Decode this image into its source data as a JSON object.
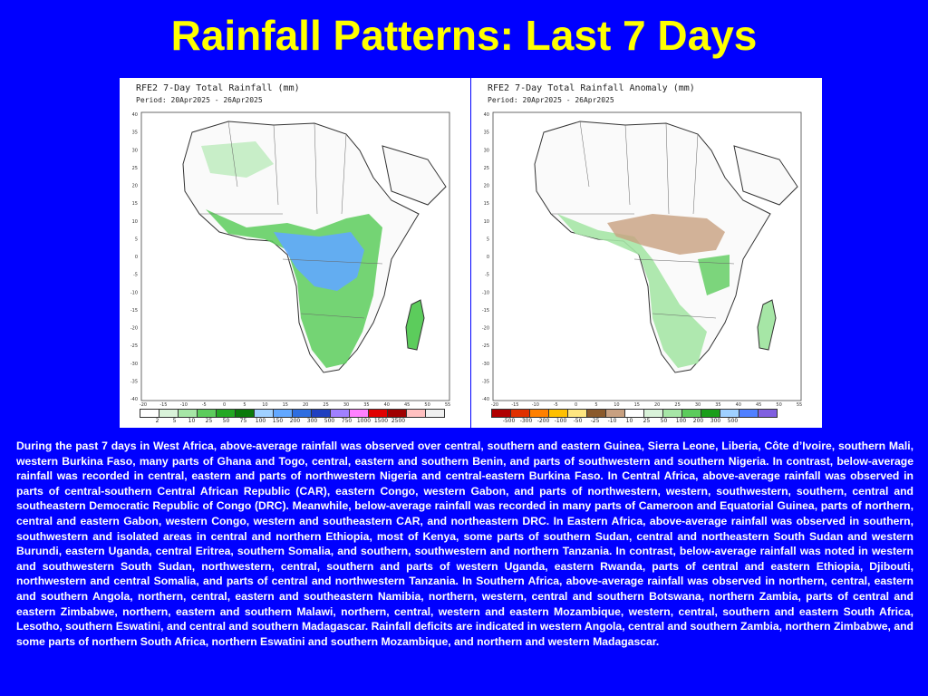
{
  "title": "Rainfall Patterns: Last 7 Days",
  "left_map": {
    "title": "RFE2 7-Day Total Rainfall (mm)",
    "period": "Period: 20Apr2025 - 26Apr2025",
    "legend_values": [
      "2",
      "5",
      "10",
      "25",
      "50",
      "75",
      "100",
      "150",
      "200",
      "300",
      "500",
      "750",
      "1000",
      "1500",
      "2500"
    ],
    "legend_colors": [
      "#ffffff",
      "#d9f2d9",
      "#a6e6a6",
      "#5ccc5c",
      "#22a822",
      "#0b7a0b",
      "#9fd0ff",
      "#62a8ff",
      "#2d6de0",
      "#2040c0",
      "#a080ff",
      "#ff80ff",
      "#e00000",
      "#a00000",
      "#ffc0c0",
      "#f0f0f0"
    ],
    "y_ticks": [
      "40",
      "35",
      "30",
      "25",
      "20",
      "15",
      "10",
      "5",
      "0",
      "-5",
      "-10",
      "-15",
      "-20",
      "-25",
      "-30",
      "-35",
      "-40"
    ],
    "x_ticks": [
      "-20",
      "-15",
      "-10",
      "-5",
      "0",
      "5",
      "10",
      "15",
      "20",
      "25",
      "30",
      "35",
      "40",
      "45",
      "50",
      "55"
    ]
  },
  "right_map": {
    "title": "RFE2 7-Day Total Rainfall Anomaly (mm)",
    "period": "Period: 20Apr2025 - 26Apr2025",
    "legend_values": [
      "-500",
      "-300",
      "-200",
      "-100",
      "-50",
      "-25",
      "-10",
      "10",
      "25",
      "50",
      "100",
      "200",
      "300",
      "500"
    ],
    "legend_colors": [
      "#b00000",
      "#e03000",
      "#ff8000",
      "#ffc000",
      "#ffe680",
      "#8b5a2b",
      "#c8a080",
      "#ffffff",
      "#d9f2d9",
      "#a6e6a6",
      "#5ccc5c",
      "#1a9e1a",
      "#9fd0ff",
      "#5080ff",
      "#8060e0"
    ],
    "y_ticks": [
      "40",
      "35",
      "30",
      "25",
      "20",
      "15",
      "10",
      "5",
      "0",
      "-5",
      "-10",
      "-15",
      "-20",
      "-25",
      "-30",
      "-35",
      "-40"
    ],
    "x_ticks": [
      "-20",
      "-15",
      "-10",
      "-5",
      "0",
      "5",
      "10",
      "15",
      "20",
      "25",
      "30",
      "35",
      "40",
      "45",
      "50",
      "55"
    ]
  },
  "body_text": "During the past 7 days in West Africa, above-average rainfall was observed over central, southern and eastern Guinea, Sierra Leone, Liberia, Côte d’Ivoire, southern Mali, western Burkina Faso, many parts of Ghana and Togo, central, eastern and southern Benin, and parts of southwestern and southern Nigeria. In contrast, below-average rainfall was recorded in central, eastern and parts of northwestern Nigeria and central-eastern Burkina Faso. In Central Africa, above-average rainfall was observed in parts of central-southern Central African Republic (CAR), eastern Congo, western Gabon, and parts of northwestern, western, southwestern, southern, central and southeastern Democratic Republic of Congo (DRC). Meanwhile, below-average rainfall was recorded in many parts of Cameroon and Equatorial Guinea, parts of northern, central and eastern Gabon, western Congo, western and southeastern CAR, and northeastern DRC. In Eastern Africa, above-average rainfall was observed in southern, southwestern and isolated areas in central and northern Ethiopia, most of Kenya, some parts of southern Sudan, central and northeastern South Sudan and western Burundi, eastern Uganda, central Eritrea, southern Somalia, and southern, southwestern and northern Tanzania. In contrast, below-average rainfall was noted in western and southwestern South Sudan, northwestern, central, southern and parts of western Uganda, eastern Rwanda, parts of central and eastern Ethiopia, Djibouti, northwestern and central Somalia, and parts of central and northwestern Tanzania. In Southern Africa, above-average rainfall was observed in northern, central, eastern and southern Angola, northern, central, eastern and southeastern Namibia, northern, western, central and southern Botswana, northern Zambia, parts of central and eastern Zimbabwe, northern, eastern and southern Malawi, northern, central, western and eastern Mozambique, western, central, southern and eastern South Africa, Lesotho, southern Eswatini, and central and southern Madagascar. Rainfall deficits are indicated in western Angola, central and southern Zambia, northern Zimbabwe, and some parts of northern South Africa, northern Eswatini and southern Mozambique, and northern and western Madagascar."
}
